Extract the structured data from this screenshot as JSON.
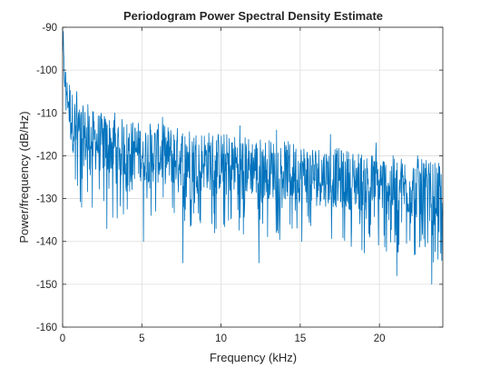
{
  "chart_data": {
    "type": "line",
    "title": "Periodogram Power Spectral Density Estimate",
    "xlabel": "Frequency (kHz)",
    "ylabel": "Power/frequency (dB/Hz)",
    "xlim": [
      0,
      24
    ],
    "ylim": [
      -160,
      -90
    ],
    "xticks": [
      0,
      5,
      10,
      15,
      20
    ],
    "yticks": [
      -160,
      -150,
      -140,
      -130,
      -120,
      -110,
      -100,
      -90
    ],
    "grid": true,
    "series": [
      {
        "color": "#0072BD",
        "x": [
          0,
          0.1,
          0.2,
          0.3,
          0.4,
          0.5,
          0.6,
          0.8,
          1,
          1.2,
          1.5,
          2,
          2.5,
          3,
          3.5,
          4,
          5,
          6,
          7,
          8,
          9,
          10,
          11,
          12,
          13,
          14,
          15,
          16,
          17,
          18,
          19,
          20,
          21,
          22,
          23,
          24
        ],
        "y": [
          -94,
          -101,
          -103,
          -106,
          -108,
          -110,
          -112,
          -113,
          -114,
          -115,
          -116,
          -116.5,
          -117,
          -117.5,
          -118,
          -118.5,
          -119,
          -119.5,
          -120,
          -120.5,
          -121,
          -121.5,
          -122,
          -122.5,
          -123,
          -123.5,
          -124,
          -124.5,
          -125,
          -125.5,
          -126,
          -126.5,
          -127,
          -127.5,
          -128,
          -129
        ],
        "fluctuation_band_db": 7,
        "minima": [
          {
            "x": 1.2,
            "y": -132
          },
          {
            "x": 2.8,
            "y": -137
          },
          {
            "x": 5.1,
            "y": -140
          },
          {
            "x": 7.6,
            "y": -145
          },
          {
            "x": 9.6,
            "y": -138
          },
          {
            "x": 12.4,
            "y": -145
          },
          {
            "x": 15.1,
            "y": -140
          },
          {
            "x": 18.9,
            "y": -142
          },
          {
            "x": 21.1,
            "y": -148
          },
          {
            "x": 23.3,
            "y": -150
          }
        ],
        "maxima": [
          {
            "x": 0.05,
            "y": -91
          },
          {
            "x": 0.9,
            "y": -105
          },
          {
            "x": 1.6,
            "y": -108
          },
          {
            "x": 3.3,
            "y": -110
          },
          {
            "x": 6.3,
            "y": -111
          },
          {
            "x": 11.2,
            "y": -113
          },
          {
            "x": 13.5,
            "y": -114
          },
          {
            "x": 16.9,
            "y": -115
          },
          {
            "x": 19.8,
            "y": -117
          },
          {
            "x": 22.4,
            "y": -120
          }
        ]
      }
    ]
  }
}
